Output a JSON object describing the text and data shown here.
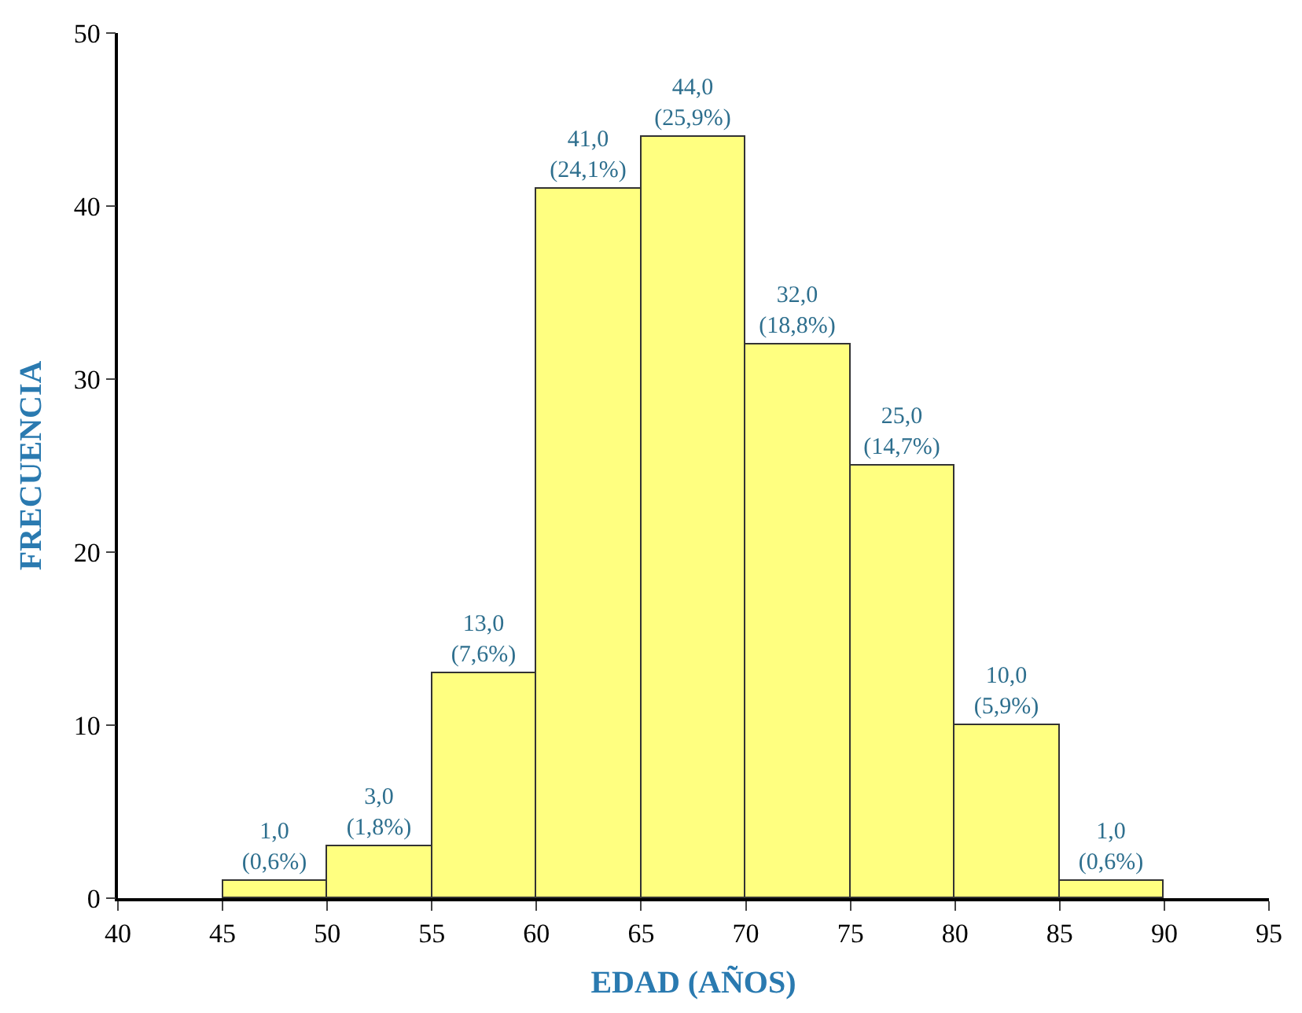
{
  "chart_data": {
    "type": "histogram",
    "xlabel": "EDAD (AÑOS)",
    "ylabel": "FRECUENCIA",
    "bins": [
      45,
      50,
      55,
      60,
      65,
      70,
      75,
      80,
      85,
      90
    ],
    "values": [
      1,
      3,
      13,
      41,
      44,
      32,
      25,
      10,
      1
    ],
    "value_labels": [
      "1,0\n(0,6%)",
      "3,0\n(1,8%)",
      "13,0\n(7,6%)",
      "41,0\n(24,1%)",
      "44,0\n(25,9%)",
      "32,0\n(18,8%)",
      "25,0\n(14,7%)",
      "10,0\n(5,9%)",
      "1,0\n(0,6%)"
    ],
    "color": "#ffff80",
    "xlim": [
      40,
      95
    ],
    "xticks": [
      40,
      45,
      50,
      55,
      60,
      65,
      70,
      75,
      80,
      85,
      90,
      95
    ],
    "ylim": [
      0,
      50
    ],
    "yticks": [
      0,
      10,
      20,
      30,
      40,
      50
    ]
  }
}
